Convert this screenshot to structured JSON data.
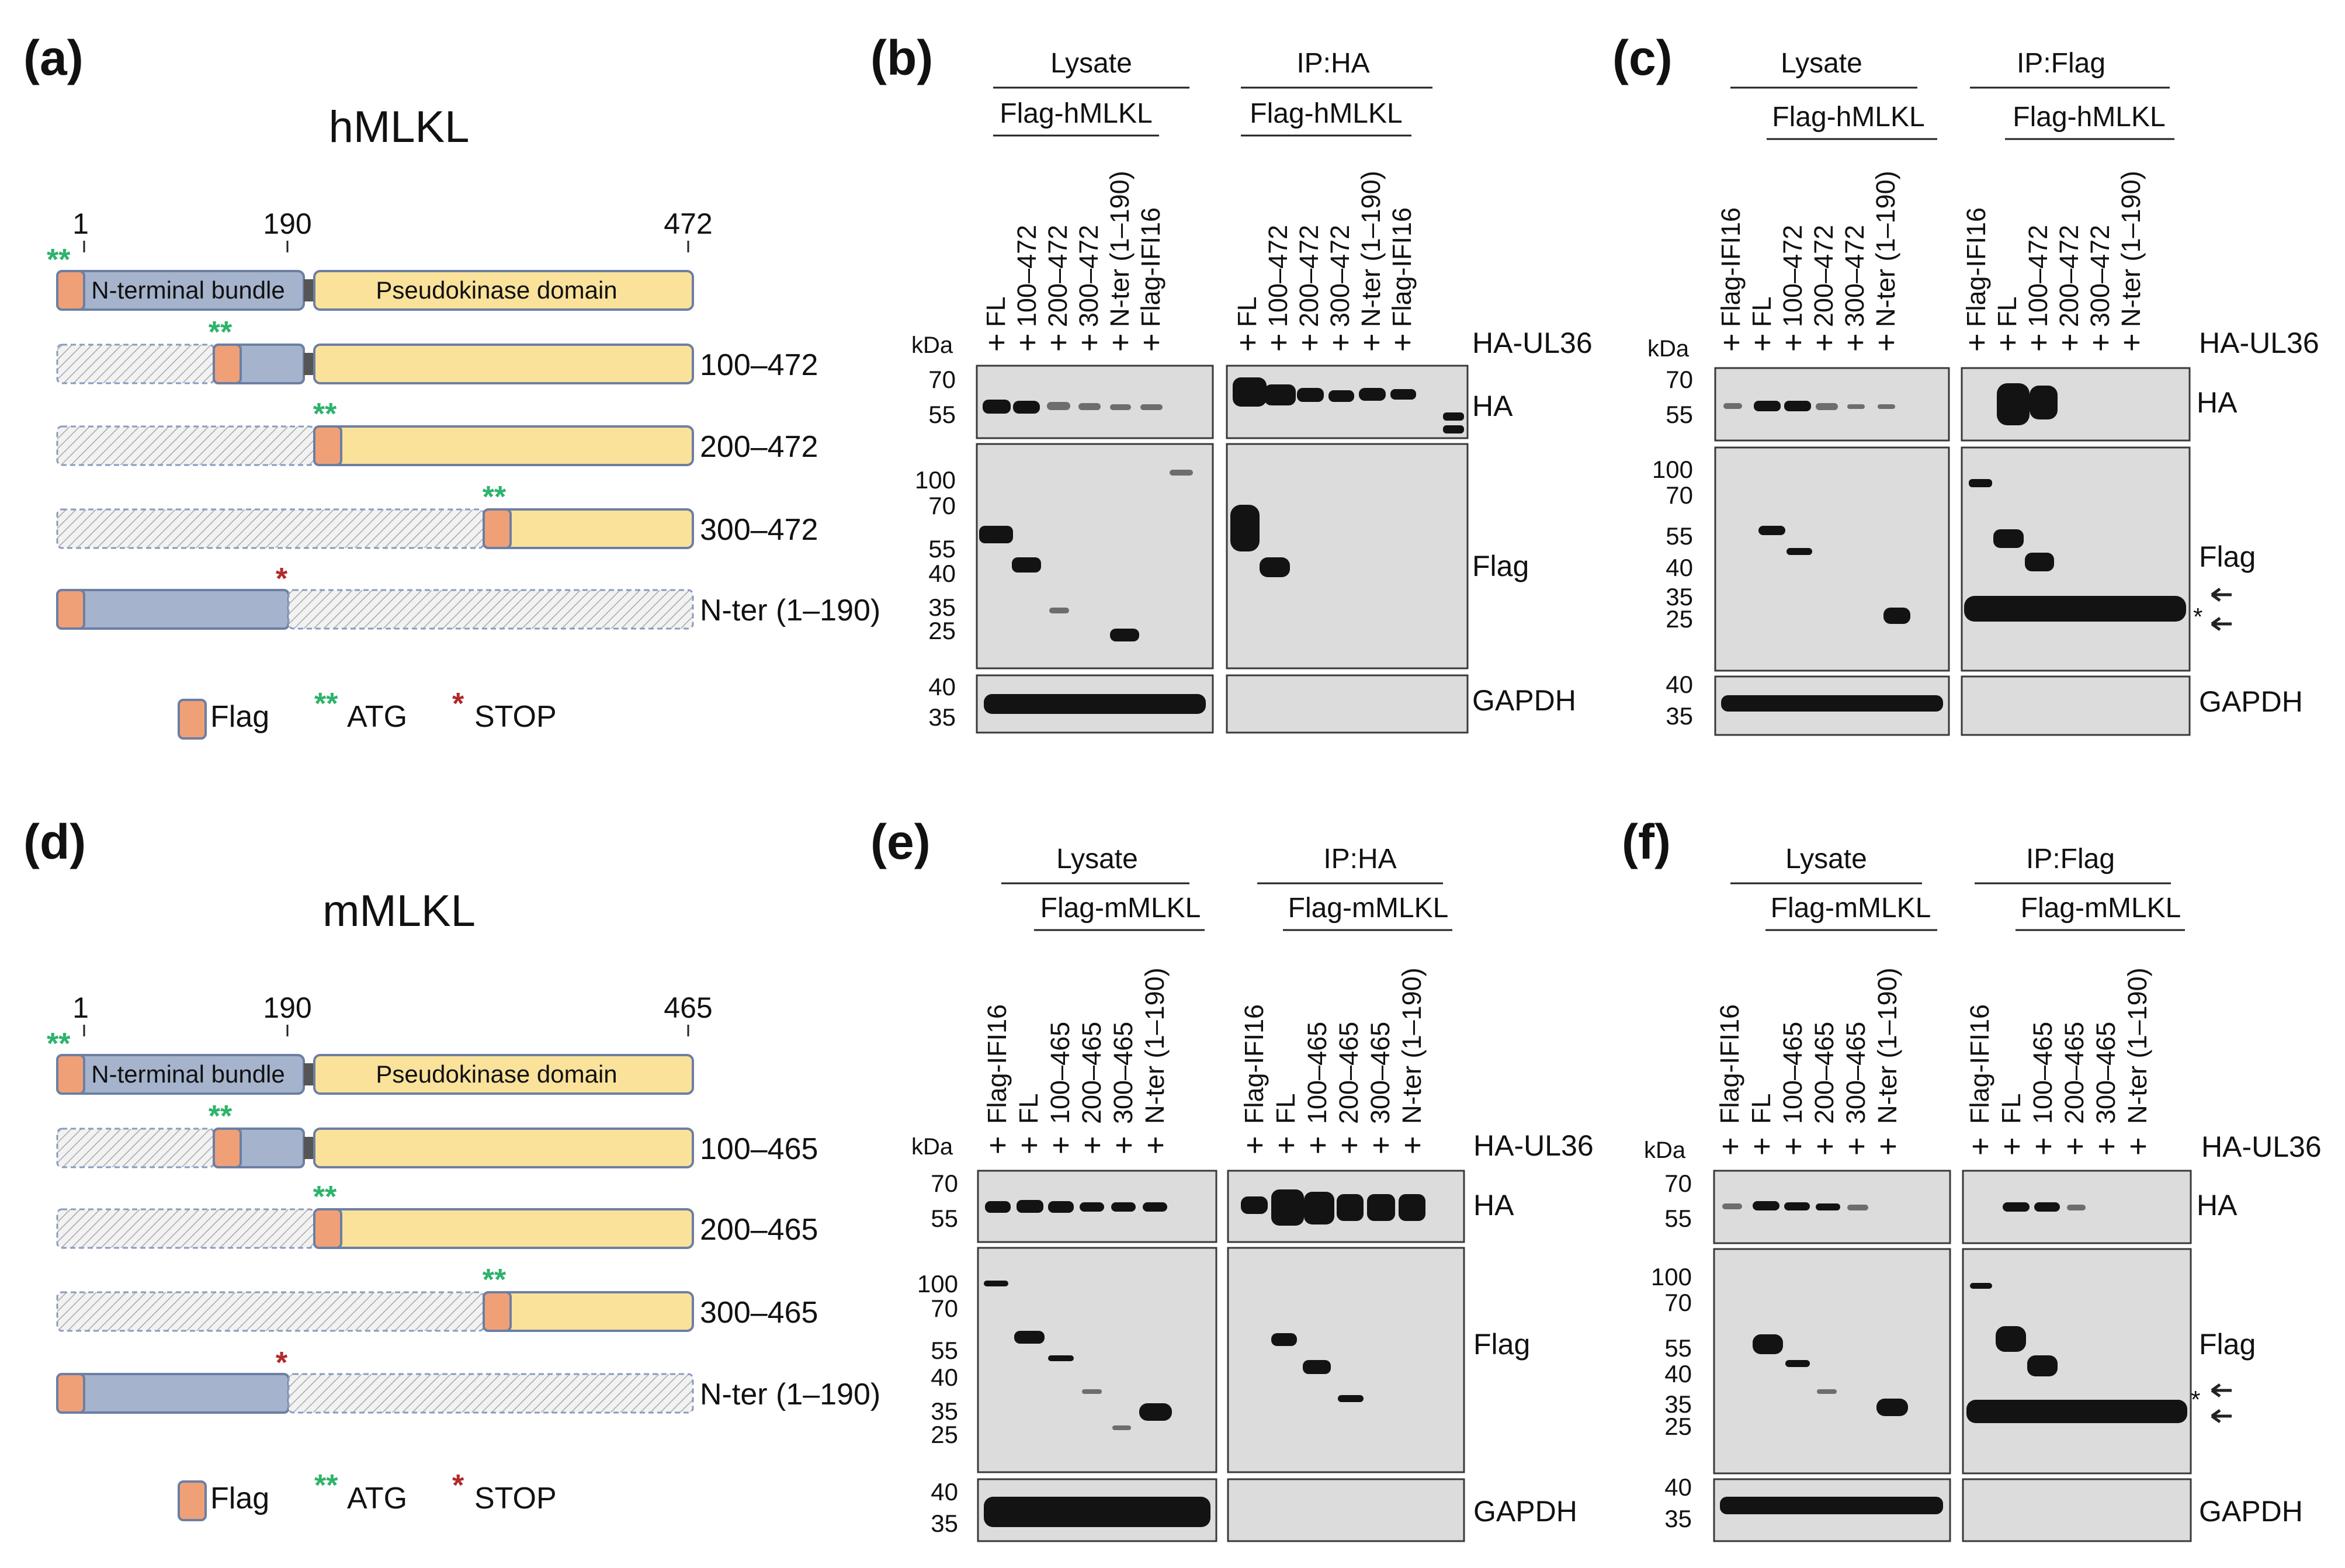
{
  "panel_labels": {
    "a": "(a)",
    "b": "(b)",
    "c": "(c)",
    "d": "(d)",
    "e": "(e)",
    "f": "(f)"
  },
  "schematic_h": {
    "title": "hMLKL",
    "pos_start": "1",
    "pos_mid": "190",
    "pos_end": "472",
    "domain_nterm": "N-terminal bundle",
    "domain_pk": "Pseudokinase domain",
    "constructs": [
      "100–472",
      "200–472",
      "300–472",
      "N-ter (1–190)"
    ]
  },
  "schematic_m": {
    "title": "mMLKL",
    "pos_start": "1",
    "pos_mid": "190",
    "pos_end": "465",
    "domain_nterm": "N-terminal bundle",
    "domain_pk": "Pseudokinase domain",
    "constructs": [
      "100–465",
      "200–465",
      "300–465",
      "N-ter (1–190)"
    ]
  },
  "legend": {
    "flag": "Flag",
    "atg_symbol": "**",
    "atg": "ATG",
    "stop_symbol": "*",
    "stop": "STOP"
  },
  "blots": {
    "kda": "kDa",
    "plus": "+",
    "ha_ul36": "HA-UL36",
    "star": "*",
    "b": {
      "group1": "Lysate",
      "group2": "IP:HA",
      "sub1": "Flag-hMLKL",
      "sub2": "Flag-hMLKL",
      "lanes1": [
        "FL",
        "100–472",
        "200–472",
        "300–472",
        "N-ter (1–190)",
        "Flag-IFI16"
      ],
      "lanes2": [
        "FL",
        "100–472",
        "200–472",
        "300–472",
        "N-ter (1–190)",
        "Flag-IFI16"
      ],
      "ha_markers": [
        "70",
        "55"
      ],
      "flag_markers": [
        "100",
        "70",
        "55",
        "40",
        "35",
        "25"
      ],
      "gapdh_markers": [
        "40",
        "35"
      ],
      "antibodies": [
        "HA",
        "Flag",
        "GAPDH"
      ]
    },
    "c": {
      "group1": "Lysate",
      "group2": "IP:Flag",
      "sub1": "Flag-hMLKL",
      "sub2": "Flag-hMLKL",
      "lanes1": [
        "Flag-IFI16",
        "FL",
        "100–472",
        "200–472",
        "300–472",
        "N-ter (1–190)"
      ],
      "lanes2": [
        "Flag-IFI16",
        "FL",
        "100–472",
        "200–472",
        "300–472",
        "N-ter (1–190)"
      ],
      "ha_markers": [
        "70",
        "55"
      ],
      "flag_markers": [
        "100",
        "70",
        "55",
        "40",
        "35",
        "25"
      ],
      "gapdh_markers": [
        "40",
        "35"
      ],
      "antibodies": [
        "HA",
        "Flag",
        "GAPDH"
      ]
    },
    "e": {
      "group1": "Lysate",
      "group2": "IP:HA",
      "sub1": "Flag-mMLKL",
      "sub2": "Flag-mMLKL",
      "lanes1": [
        "Flag-IFI16",
        "FL",
        "100–465",
        "200–465",
        "300–465",
        "N-ter (1–190)"
      ],
      "lanes2": [
        "Flag-IFI16",
        "FL",
        "100–465",
        "200–465",
        "300–465",
        "N-ter (1–190)"
      ],
      "ha_markers": [
        "70",
        "55"
      ],
      "flag_markers": [
        "100",
        "70",
        "55",
        "40",
        "35",
        "25"
      ],
      "gapdh_markers": [
        "40",
        "35"
      ],
      "antibodies": [
        "HA",
        "Flag",
        "GAPDH"
      ]
    },
    "f": {
      "group1": "Lysate",
      "group2": "IP:Flag",
      "sub1": "Flag-mMLKL",
      "sub2": "Flag-mMLKL",
      "lanes1": [
        "Flag-IFI16",
        "FL",
        "100–465",
        "200–465",
        "300–465",
        "N-ter (1–190)"
      ],
      "lanes2": [
        "Flag-IFI16",
        "FL",
        "100–465",
        "200–465",
        "300–465",
        "N-ter (1–190)"
      ],
      "ha_markers": [
        "70",
        "55"
      ],
      "flag_markers": [
        "100",
        "70",
        "55",
        "40",
        "35",
        "25"
      ],
      "gapdh_markers": [
        "40",
        "35"
      ],
      "antibodies": [
        "HA",
        "Flag",
        "GAPDH"
      ]
    }
  }
}
